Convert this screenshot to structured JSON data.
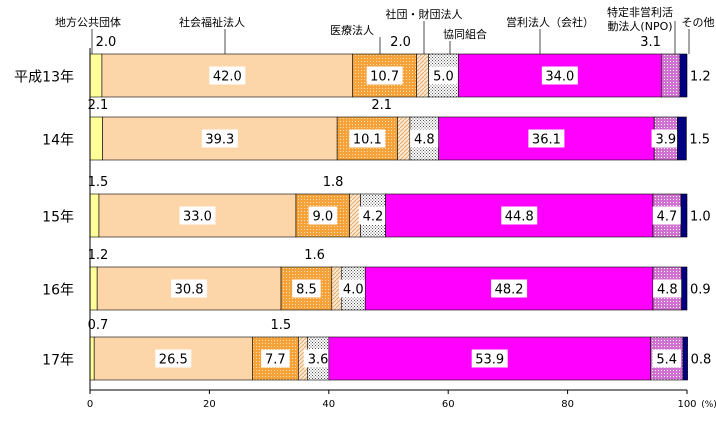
{
  "chart_data": {
    "type": "bar",
    "orientation": "horizontal",
    "stacked": true,
    "categories": [
      "平成13年",
      "14年",
      "15年",
      "16年",
      "17年"
    ],
    "series": [
      {
        "name": "地方公共団体",
        "values": [
          2.0,
          2.1,
          1.5,
          1.2,
          0.7
        ]
      },
      {
        "name": "社会福祉法人",
        "values": [
          42.0,
          39.3,
          33.0,
          30.8,
          26.5
        ]
      },
      {
        "name": "医療法人",
        "values": [
          10.7,
          10.1,
          9.0,
          8.5,
          7.7
        ]
      },
      {
        "name": "社団・財団法人",
        "values": [
          2.0,
          2.1,
          1.8,
          1.6,
          1.5
        ]
      },
      {
        "name": "協同組合",
        "values": [
          5.0,
          4.8,
          4.2,
          4.0,
          3.6
        ]
      },
      {
        "name": "営利法人（会社）",
        "values": [
          34.0,
          36.1,
          44.8,
          48.2,
          53.9
        ]
      },
      {
        "name": "特定非営利活動法人(NPO)",
        "values": [
          3.1,
          3.9,
          4.7,
          4.8,
          5.4
        ]
      },
      {
        "name": "その他",
        "values": [
          1.2,
          1.5,
          1.0,
          0.9,
          0.8
        ]
      }
    ],
    "labels": [
      [
        "2.0",
        "42.0",
        "10.7",
        "2.0",
        "5.0",
        "34.0",
        "3.1",
        "1.2"
      ],
      [
        "2.1",
        "39.3",
        "10.1",
        "2.1",
        "4.8",
        "36.1",
        "3.9",
        "1.5"
      ],
      [
        "1.5",
        "33.0",
        "9.0",
        "1.8",
        "4.2",
        "44.8",
        "4.7",
        "1.0"
      ],
      [
        "1.2",
        "30.8",
        "8.5",
        "1.6",
        "4.0",
        "48.2",
        "4.8",
        "0.9"
      ],
      [
        "0.7",
        "26.5",
        "7.7",
        "1.5",
        "3.6",
        "53.9",
        "5.4",
        "0.8"
      ]
    ],
    "xlim": [
      0,
      100
    ],
    "xticks": [
      "0",
      "20",
      "40",
      "60",
      "80",
      "100"
    ],
    "xunit": "(%)",
    "colors": {
      "地方公共団体": "#ffff99",
      "社会福祉法人": "#fcd5a8",
      "医療法人": "#f5a23a",
      "社団・財団法人": "#fbe8cf",
      "協同組合": "#e6e6e6",
      "営利法人（会社）": "#ff00ff",
      "特定非営利活動法人(NPO)": "#d070d0",
      "その他": "#000080"
    }
  }
}
